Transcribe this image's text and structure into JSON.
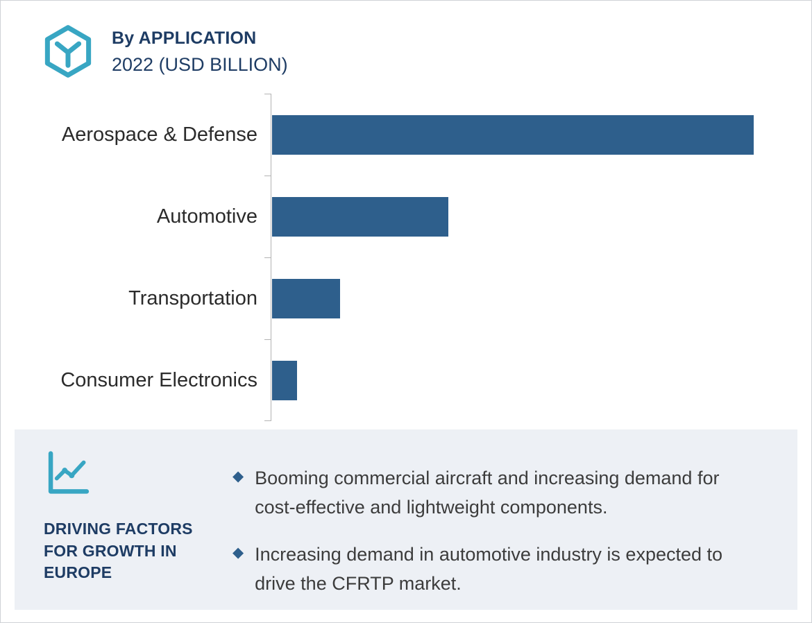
{
  "header": {
    "title": "By APPLICATION",
    "subtitle": "2022 (USD BILLION)"
  },
  "chart_data": {
    "type": "bar",
    "orientation": "horizontal",
    "title": "By APPLICATION",
    "subtitle": "2022 (USD BILLION)",
    "categories": [
      "Aerospace & Defense",
      "Automotive",
      "Transportation",
      "Consumer Electronics"
    ],
    "values": [
      6.7,
      2.45,
      0.95,
      0.35
    ],
    "xlabel": "",
    "ylabel": "",
    "xlim": [
      0,
      7.5
    ],
    "gridlines": false,
    "legend": false,
    "value_labels_shown": false,
    "bar_color": "#2e5f8c"
  },
  "driving_factors": {
    "heading": "DRIVING FACTORS FOR GROWTH IN EUROPE",
    "bullet_glyph": "◆",
    "bullets": [
      "Booming commercial aircraft and increasing demand for cost-effective and lightweight components.",
      "Increasing demand in automotive industry is expected to drive the CFRTP market."
    ]
  },
  "icons": {
    "logo": "hexagon-logo-icon",
    "factors": "growth-chart-icon",
    "bullet": "diamond-bullet-icon"
  },
  "colors": {
    "bar": "#2e5f8c",
    "navy_text": "#1e3c64",
    "teal": "#38a6c3",
    "panel_background": "#edf0f5",
    "body_text": "#3c3c3c",
    "axis": "#b3b3b3"
  }
}
